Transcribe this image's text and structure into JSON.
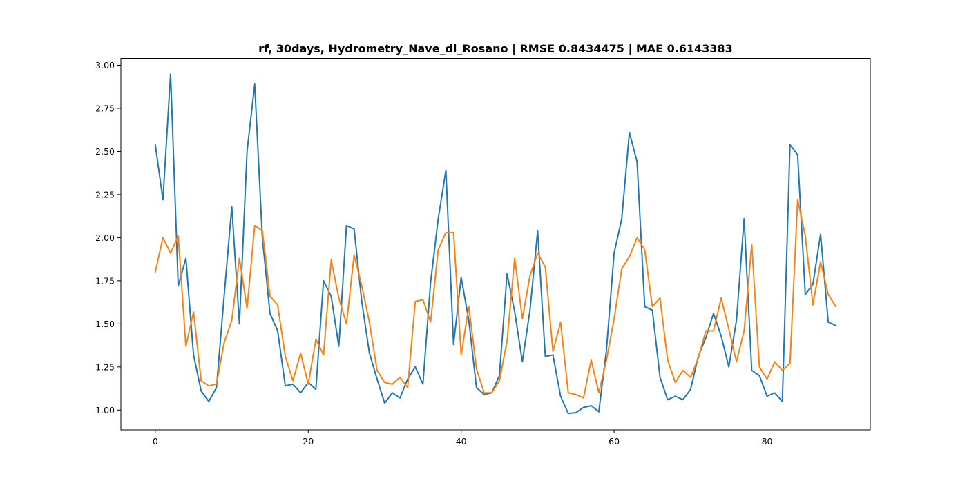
{
  "chart_data": {
    "type": "line",
    "title": "rf, 30days, Hydrometry_Nave_di_Rosano | RMSE 0.8434475 | MAE 0.6143383",
    "xlabel": "",
    "ylabel": "",
    "xlim": [
      -4.5,
      93.5
    ],
    "ylim": [
      0.885,
      3.04
    ],
    "xticks": [
      0,
      20,
      40,
      60,
      80
    ],
    "yticks": [
      1.0,
      1.25,
      1.5,
      1.75,
      2.0,
      2.25,
      2.5,
      2.75,
      3.0
    ],
    "ytick_labels": [
      "1.00",
      "1.25",
      "1.50",
      "1.75",
      "2.00",
      "2.25",
      "2.50",
      "2.75",
      "3.00"
    ],
    "grid": false,
    "legend": "none",
    "series": [
      {
        "color": "#1f77b4",
        "values": [
          2.54,
          2.22,
          2.95,
          1.72,
          1.88,
          1.32,
          1.11,
          1.05,
          1.13,
          1.66,
          2.18,
          1.5,
          2.5,
          2.89,
          2.0,
          1.56,
          1.46,
          1.14,
          1.15,
          1.1,
          1.16,
          1.12,
          1.75,
          1.66,
          1.37,
          2.07,
          2.05,
          1.63,
          1.33,
          1.18,
          1.04,
          1.1,
          1.07,
          1.18,
          1.25,
          1.15,
          1.74,
          2.11,
          2.39,
          1.38,
          1.77,
          1.52,
          1.13,
          1.09,
          1.1,
          1.2,
          1.79,
          1.57,
          1.28,
          1.58,
          2.04,
          1.31,
          1.32,
          1.08,
          0.98,
          0.985,
          1.015,
          1.025,
          0.99,
          1.35,
          1.91,
          2.11,
          2.61,
          2.44,
          1.6,
          1.58,
          1.19,
          1.06,
          1.08,
          1.06,
          1.12,
          1.31,
          1.42,
          1.56,
          1.43,
          1.25,
          1.52,
          2.11,
          1.23,
          1.2,
          1.08,
          1.1,
          1.05,
          2.54,
          2.48,
          1.67,
          1.73,
          2.02,
          1.51,
          1.49
        ]
      },
      {
        "color": "#ff7f0e",
        "values": [
          1.8,
          2.0,
          1.91,
          2.01,
          1.37,
          1.57,
          1.17,
          1.14,
          1.15,
          1.39,
          1.52,
          1.88,
          1.59,
          2.07,
          2.04,
          1.66,
          1.61,
          1.31,
          1.17,
          1.33,
          1.15,
          1.41,
          1.32,
          1.87,
          1.65,
          1.5,
          1.9,
          1.72,
          1.51,
          1.23,
          1.16,
          1.15,
          1.19,
          1.13,
          1.63,
          1.64,
          1.51,
          1.93,
          2.03,
          2.03,
          1.32,
          1.6,
          1.24,
          1.1,
          1.1,
          1.17,
          1.4,
          1.88,
          1.53,
          1.78,
          1.91,
          1.83,
          1.34,
          1.51,
          1.1,
          1.09,
          1.07,
          1.29,
          1.1,
          1.29,
          1.53,
          1.82,
          1.89,
          2.0,
          1.93,
          1.6,
          1.65,
          1.29,
          1.16,
          1.23,
          1.19,
          1.3,
          1.46,
          1.46,
          1.65,
          1.47,
          1.28,
          1.46,
          1.96,
          1.25,
          1.18,
          1.28,
          1.23,
          1.27,
          2.22,
          2.01,
          1.61,
          1.86,
          1.67,
          1.6
        ]
      }
    ]
  }
}
